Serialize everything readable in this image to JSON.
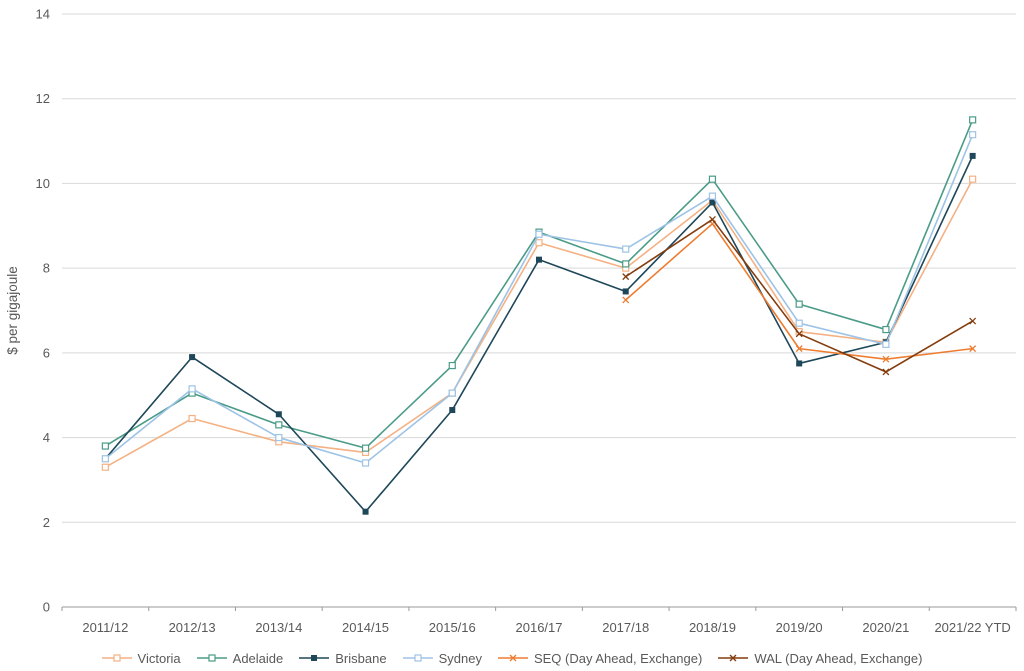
{
  "chart_data": {
    "type": "line",
    "title": "",
    "xlabel": "",
    "ylabel": "$ per gigajoule",
    "ylim": [
      0,
      14
    ],
    "ytick_step": 2,
    "grid": true,
    "legend_position": "bottom",
    "categories": [
      "2011/12",
      "2012/13",
      "2013/14",
      "2014/15",
      "2015/16",
      "2016/17",
      "2017/18",
      "2018/19",
      "2019/20",
      "2020/21",
      "2021/22 YTD"
    ],
    "series": [
      {
        "name": "Victoria",
        "color": "#f4b183",
        "marker": "square-open",
        "values": [
          3.3,
          4.45,
          3.9,
          3.65,
          5.05,
          8.6,
          8.0,
          9.6,
          6.5,
          6.25,
          10.1
        ]
      },
      {
        "name": "Adelaide",
        "color": "#4a9b87",
        "marker": "square-open",
        "values": [
          3.8,
          5.05,
          4.3,
          3.75,
          5.7,
          8.85,
          8.1,
          10.1,
          7.15,
          6.55,
          11.5
        ]
      },
      {
        "name": "Brisbane",
        "color": "#1e4759",
        "marker": "square",
        "values": [
          3.5,
          5.9,
          4.55,
          2.25,
          4.65,
          8.2,
          7.45,
          9.55,
          5.75,
          6.25,
          10.65
        ]
      },
      {
        "name": "Sydney",
        "color": "#9dc3e6",
        "marker": "square-open",
        "values": [
          3.5,
          5.15,
          4.0,
          3.4,
          5.05,
          8.8,
          8.45,
          9.7,
          6.7,
          6.2,
          11.15
        ]
      },
      {
        "name": "SEQ (Day Ahead, Exchange)",
        "color": "#ed7d31",
        "marker": "x",
        "values": [
          null,
          null,
          null,
          null,
          null,
          null,
          7.25,
          9.05,
          6.1,
          5.85,
          6.1
        ]
      },
      {
        "name": "WAL (Day Ahead, Exchange)",
        "color": "#843c0c",
        "marker": "x",
        "values": [
          null,
          null,
          null,
          null,
          null,
          null,
          7.8,
          9.15,
          6.45,
          5.55,
          6.75
        ]
      }
    ]
  }
}
